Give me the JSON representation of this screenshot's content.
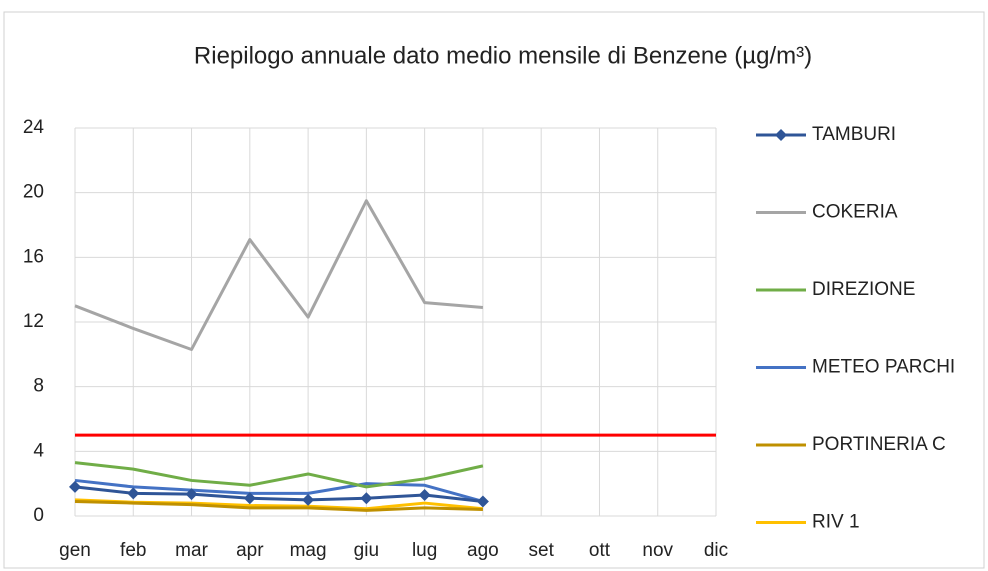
{
  "chart_data": {
    "type": "line",
    "title": "Riepilogo annuale dato medio mensile di Benzene (µg/m³)",
    "categories": [
      "gen",
      "feb",
      "mar",
      "apr",
      "mag",
      "giu",
      "lug",
      "ago",
      "set",
      "ott",
      "nov",
      "dic"
    ],
    "series": [
      {
        "name": "TAMBURI",
        "color": "#2f5597",
        "marker": "diamond",
        "values": [
          1.8,
          1.4,
          1.35,
          1.1,
          1.0,
          1.1,
          1.3,
          0.9,
          null,
          null,
          null,
          null
        ]
      },
      {
        "name": "COKERIA",
        "color": "#a5a5a5",
        "values": [
          13.0,
          11.6,
          10.3,
          17.1,
          12.3,
          19.5,
          13.2,
          12.9,
          null,
          null,
          null,
          null
        ]
      },
      {
        "name": "DIREZIONE",
        "color": "#70ad47",
        "values": [
          3.3,
          2.9,
          2.2,
          1.9,
          2.6,
          1.8,
          2.3,
          3.1,
          null,
          null,
          null,
          null
        ]
      },
      {
        "name": "METEO PARCHI",
        "color": "#4472c4",
        "values": [
          2.2,
          1.8,
          1.6,
          1.4,
          1.4,
          2.0,
          1.9,
          0.9,
          null,
          null,
          null,
          null
        ]
      },
      {
        "name": "PORTINERIA C",
        "color": "#bf9000",
        "values": [
          0.9,
          0.8,
          0.7,
          0.5,
          0.5,
          0.35,
          0.5,
          0.4,
          null,
          null,
          null,
          null
        ]
      },
      {
        "name": "RIV 1",
        "color": "#ffc000",
        "values": [
          1.0,
          0.85,
          0.8,
          0.65,
          0.6,
          0.45,
          0.8,
          0.45,
          null,
          null,
          null,
          null
        ]
      }
    ],
    "reference_line": {
      "value": 5,
      "color": "#ff0000"
    },
    "ylim": [
      0,
      24
    ],
    "yticks": [
      0,
      4,
      8,
      12,
      16,
      20,
      24
    ],
    "grid": true,
    "legend": "right"
  }
}
